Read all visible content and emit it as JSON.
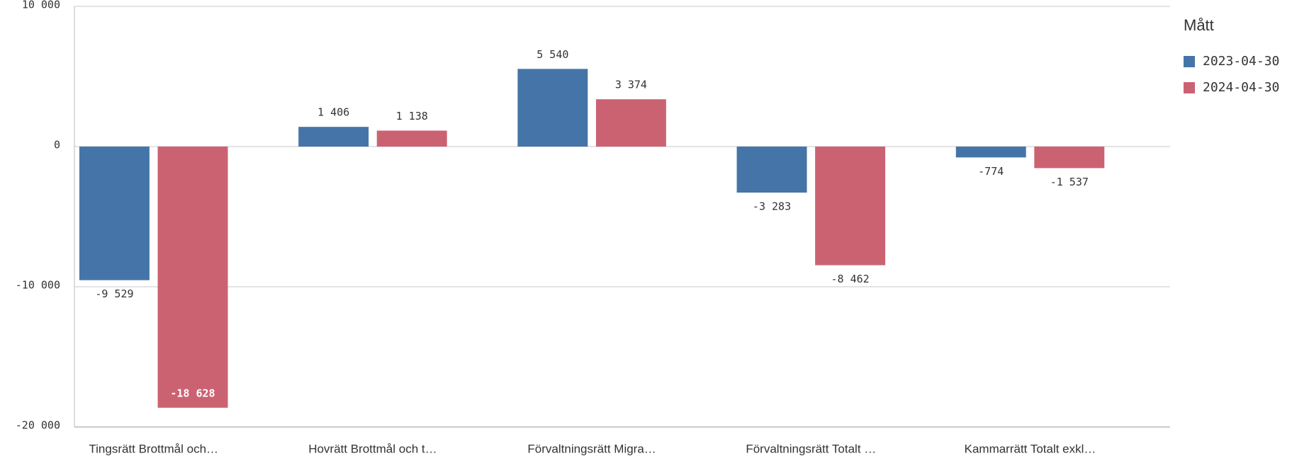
{
  "chart_data": {
    "type": "bar",
    "categories": [
      "Tingsrätt Brottmål och…",
      "Hovrätt Brottmål och t…",
      "Förvaltningsrätt Migra…",
      "Förvaltningsrätt Totalt …",
      "Kammarrätt Totalt exkl…"
    ],
    "series": [
      {
        "name": "2023-04-30",
        "color": "#4575a8",
        "values": [
          -9529,
          1406,
          5540,
          -3283,
          -774
        ],
        "value_labels": [
          "-9 529",
          "1 406",
          "5 540",
          "-3 283",
          "-774"
        ]
      },
      {
        "name": "2024-04-30",
        "color": "#cb6272",
        "values": [
          -18628,
          1138,
          3374,
          -8462,
          -1537
        ],
        "value_labels": [
          "-18 628",
          "1 138",
          "3 374",
          "-8 462",
          "-1 537"
        ]
      }
    ],
    "legend_title": "Mått",
    "legend": "right",
    "ylim": [
      -20000,
      10000
    ],
    "yticks": [
      {
        "value": 10000,
        "label": "10 000"
      },
      0,
      {
        "value": -10000,
        "label": "-10 000"
      },
      {
        "value": -20000,
        "label": "-20 000"
      }
    ],
    "grid": true
  }
}
